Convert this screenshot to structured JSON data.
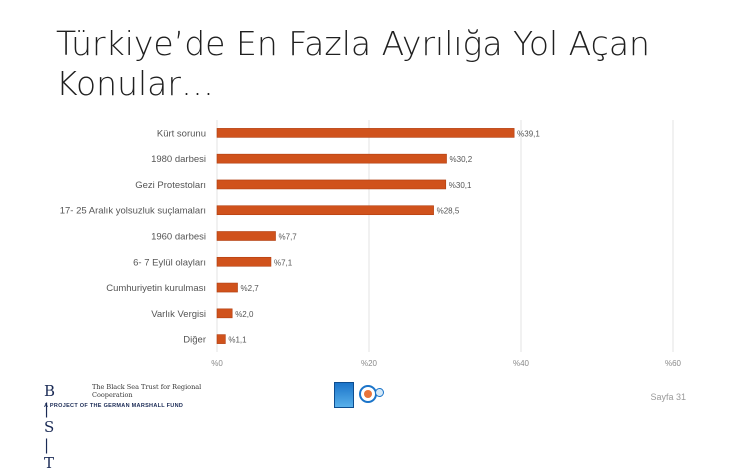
{
  "slide": {
    "title": "Türkiye’de En Fazla Ayrılığa Yol Açan Konular…",
    "page_label": "Sayfa 31"
  },
  "footer": {
    "logo_letters": "B | S | T",
    "logo_name": "The Black Sea Trust for Regional Cooperation",
    "logo_tagline": "A PROJECT OF THE GERMAN MARSHALL FUND"
  },
  "chart_data": {
    "type": "bar",
    "orientation": "horizontal",
    "categories": [
      "Kürt sorunu",
      "1980 darbesi",
      "Gezi Protestoları",
      "17- 25 Aralık yolsuzluk suçlamaları",
      "1960 darbesi",
      "6- 7 Eylül olayları",
      "Cumhuriyetin kurulması",
      "Varlık Vergisi",
      "Diğer"
    ],
    "values": [
      39.1,
      30.2,
      30.1,
      28.5,
      7.7,
      7.1,
      2.7,
      2.0,
      1.1
    ],
    "data_labels": [
      "%39,1",
      "%30,2",
      "%30,1",
      "%28,5",
      "%7,7",
      "%7,1",
      "%2,7",
      "%2,0",
      "%1,1"
    ],
    "x_ticks": [
      0,
      20,
      40,
      60
    ],
    "x_tick_labels": [
      "%0",
      "%20",
      "%40",
      "%60"
    ],
    "xlim": [
      0,
      60
    ],
    "grid": true,
    "bar_color": "#d0521c"
  }
}
